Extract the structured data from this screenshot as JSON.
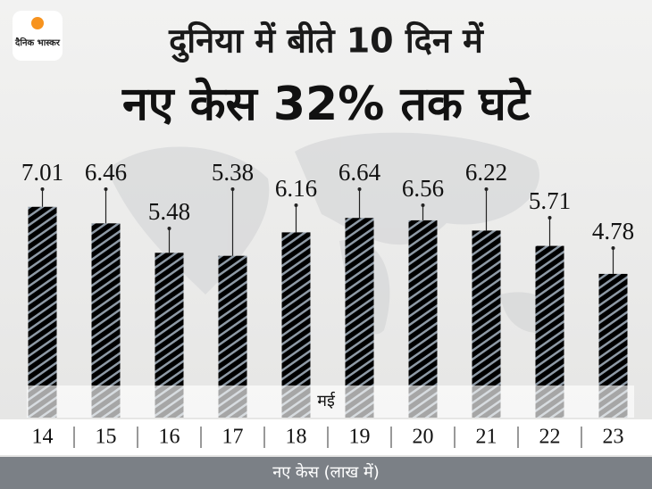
{
  "logo": "दैनिक भास्कर",
  "chart_data": {
    "type": "bar",
    "title": "दुनिया में बीते 10 दिन में",
    "subtitle": "नए केस 32% तक घटे",
    "band_label": "मई",
    "x_label": "नए केस (लाख में)",
    "categories": [
      "14",
      "15",
      "16",
      "17",
      "18",
      "19",
      "20",
      "21",
      "22",
      "23"
    ],
    "values": [
      7.01,
      6.46,
      5.48,
      5.38,
      6.16,
      6.64,
      6.56,
      6.22,
      5.71,
      4.78
    ],
    "color": "#5b6a7a"
  }
}
